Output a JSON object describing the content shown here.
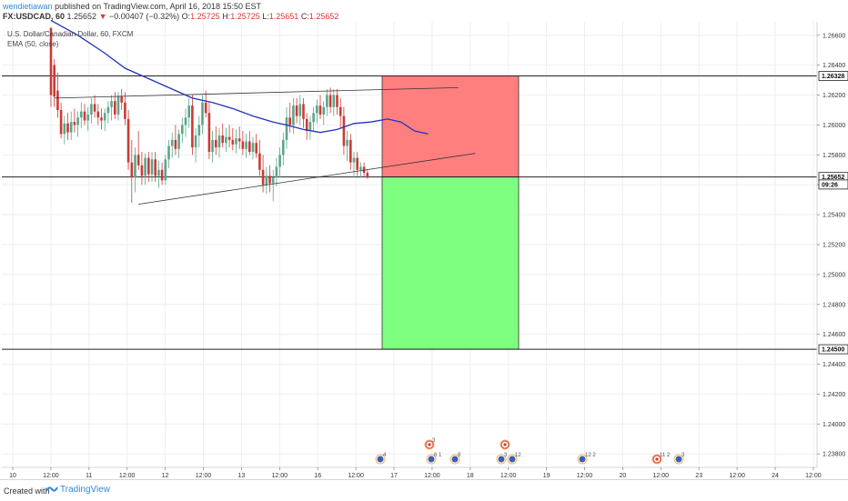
{
  "header": {
    "author": "wendietiawan",
    "published_text": "published on TradingView.com, April 16, 2018 15:50 EST",
    "symbol": "FX:USDCAD, 60",
    "last": "1.25652",
    "change_arrow": "▼",
    "change": "−0.00407 (−0.32%)",
    "o_label": "O:",
    "o": "1.25725",
    "h_label": "H:",
    "h": "1.25725",
    "l_label": "L:",
    "l": "1.25651",
    "c_label": "C:",
    "c": "1.25652"
  },
  "legend": {
    "instrument": "U.S. Dollar/Canadian Dollar, 60, FXCM",
    "indicator": "EMA (50, close)"
  },
  "footer": {
    "created_with": "Created with",
    "brand": "TradingView"
  },
  "colors": {
    "up": "#5aa68c",
    "down": "#cc3a35",
    "ema": "#2233bb",
    "stop_zone": "#ff7f7f",
    "target_zone": "#7fff7f",
    "canada_flag": "#d9382f",
    "us_flag": "#3a5fae"
  },
  "chart_data": {
    "type": "candlestick",
    "title": "",
    "xlabel": "",
    "ylabel": "",
    "ylim": [
      1.2371,
      1.2669
    ],
    "y_ticks": [
      "1.26600",
      "1.26400",
      "1.26200",
      "1.26000",
      "1.25800",
      "1.25600",
      "1.25400",
      "1.25200",
      "1.25000",
      "1.24800",
      "1.24600",
      "1.24400",
      "1.24200",
      "1.24000",
      "1.23800"
    ],
    "x_ticks": [
      "10",
      "12:00",
      "11",
      "12:00",
      "12",
      "12:00",
      "13",
      "12:00",
      "16",
      "12:00",
      "17",
      "12:00",
      "18",
      "12:00",
      "19",
      "12:00",
      "20",
      "12:00",
      "23",
      "12:00",
      "24",
      "12:00"
    ],
    "price_labels": [
      {
        "text": "1.26328",
        "value": 1.26328
      },
      {
        "text": "1.25652",
        "value": 1.25652
      },
      {
        "text": "09:26",
        "value": 1.25602
      },
      {
        "text": "1.24500",
        "value": 1.245
      }
    ],
    "horizontal_lines": [
      1.26328,
      1.25652,
      1.245
    ],
    "position": {
      "entry": 1.25652,
      "stop": 1.26328,
      "target": 1.245
    },
    "trendlines": [
      {
        "from": {
          "bar": 1,
          "price": 1.2618
        },
        "to": {
          "bar": 121,
          "price": 1.2625
        }
      },
      {
        "from": {
          "bar": 26,
          "price": 1.2547
        },
        "to": {
          "bar": 126,
          "price": 1.2581
        }
      }
    ],
    "candles": [
      [
        1.2665,
        1.2665,
        1.2612,
        1.262
      ],
      [
        1.264,
        1.2644,
        1.2612,
        1.2619
      ],
      [
        1.2623,
        1.2635,
        1.2605,
        1.261
      ],
      [
        1.261,
        1.2615,
        1.2591,
        1.2594
      ],
      [
        1.2594,
        1.2606,
        1.2587,
        1.2601
      ],
      [
        1.2601,
        1.2608,
        1.259,
        1.2595
      ],
      [
        1.2595,
        1.2609,
        1.259,
        1.2602
      ],
      [
        1.2602,
        1.2611,
        1.2595,
        1.26
      ],
      [
        1.26,
        1.2609,
        1.2592,
        1.2605
      ],
      [
        1.2605,
        1.2615,
        1.2598,
        1.2609
      ],
      [
        1.2609,
        1.2614,
        1.26,
        1.2603
      ],
      [
        1.2603,
        1.2612,
        1.2596,
        1.2607
      ],
      [
        1.2607,
        1.2618,
        1.2601,
        1.2614
      ],
      [
        1.2614,
        1.262,
        1.2605,
        1.2609
      ],
      [
        1.2609,
        1.2614,
        1.26,
        1.2605
      ],
      [
        1.2605,
        1.2611,
        1.2597,
        1.2603
      ],
      [
        1.2603,
        1.2611,
        1.2596,
        1.2608
      ],
      [
        1.2608,
        1.2616,
        1.2601,
        1.2612
      ],
      [
        1.2612,
        1.262,
        1.2603,
        1.2616
      ],
      [
        1.2616,
        1.2622,
        1.2604,
        1.2607
      ],
      [
        1.2607,
        1.2622,
        1.2603,
        1.2619
      ],
      [
        1.2619,
        1.2624,
        1.261,
        1.2615
      ],
      [
        1.2615,
        1.2622,
        1.26,
        1.2604
      ],
      [
        1.2604,
        1.261,
        1.257,
        1.2575
      ],
      [
        1.2575,
        1.259,
        1.2548,
        1.2565
      ],
      [
        1.2565,
        1.2585,
        1.2555,
        1.258
      ],
      [
        1.258,
        1.2596,
        1.257,
        1.2573
      ],
      [
        1.2573,
        1.2582,
        1.256,
        1.2566
      ],
      [
        1.2566,
        1.2581,
        1.256,
        1.2578
      ],
      [
        1.2578,
        1.2582,
        1.2562,
        1.2567
      ],
      [
        1.2567,
        1.2582,
        1.2562,
        1.2577
      ],
      [
        1.2577,
        1.2582,
        1.2562,
        1.2566
      ],
      [
        1.2566,
        1.2576,
        1.2558,
        1.257
      ],
      [
        1.257,
        1.2575,
        1.256,
        1.2563
      ],
      [
        1.2563,
        1.258,
        1.256,
        1.2577
      ],
      [
        1.2577,
        1.259,
        1.2571,
        1.2586
      ],
      [
        1.2586,
        1.2595,
        1.2578,
        1.259
      ],
      [
        1.259,
        1.26,
        1.258,
        1.2584
      ],
      [
        1.2584,
        1.2597,
        1.2578,
        1.2594
      ],
      [
        1.2594,
        1.2605,
        1.2588,
        1.26
      ],
      [
        1.26,
        1.2611,
        1.2592,
        1.2605
      ],
      [
        1.2605,
        1.2618,
        1.2598,
        1.2613
      ],
      [
        1.2613,
        1.262,
        1.258,
        1.2585
      ],
      [
        1.2585,
        1.2598,
        1.2575,
        1.2593
      ],
      [
        1.2593,
        1.2606,
        1.2585,
        1.26
      ],
      [
        1.26,
        1.262,
        1.2594,
        1.2615
      ],
      [
        1.2615,
        1.2623,
        1.2605,
        1.2608
      ],
      [
        1.2608,
        1.2615,
        1.2577,
        1.2582
      ],
      [
        1.2582,
        1.2596,
        1.2575,
        1.259
      ],
      [
        1.259,
        1.2599,
        1.258,
        1.2585
      ],
      [
        1.2585,
        1.2598,
        1.2578,
        1.2593
      ],
      [
        1.2593,
        1.2601,
        1.2585,
        1.2588
      ],
      [
        1.2588,
        1.2598,
        1.2582,
        1.2592
      ],
      [
        1.2592,
        1.26,
        1.2585,
        1.259
      ],
      [
        1.259,
        1.2598,
        1.2583,
        1.2587
      ],
      [
        1.2587,
        1.2597,
        1.2581,
        1.2591
      ],
      [
        1.2591,
        1.2599,
        1.2584,
        1.2589
      ],
      [
        1.2589,
        1.2596,
        1.258,
        1.2584
      ],
      [
        1.2584,
        1.2594,
        1.2578,
        1.2589
      ],
      [
        1.2589,
        1.2596,
        1.258,
        1.2582
      ],
      [
        1.2582,
        1.2592,
        1.2577,
        1.2588
      ],
      [
        1.2588,
        1.2594,
        1.2578,
        1.2581
      ],
      [
        1.2581,
        1.259,
        1.2566,
        1.257
      ],
      [
        1.257,
        1.258,
        1.2555,
        1.256
      ],
      [
        1.256,
        1.2572,
        1.2554,
        1.2566
      ],
      [
        1.2566,
        1.2573,
        1.2555,
        1.2561
      ],
      [
        1.2561,
        1.257,
        1.2549,
        1.2565
      ],
      [
        1.2565,
        1.2578,
        1.2559,
        1.2572
      ],
      [
        1.2572,
        1.2585,
        1.2565,
        1.258
      ],
      [
        1.258,
        1.2595,
        1.2573,
        1.259
      ],
      [
        1.259,
        1.2612,
        1.2584,
        1.2605
      ],
      [
        1.2605,
        1.2615,
        1.2595,
        1.26
      ],
      [
        1.26,
        1.2618,
        1.2594,
        1.2613
      ],
      [
        1.2613,
        1.2618,
        1.2601,
        1.2606
      ],
      [
        1.2606,
        1.262,
        1.26,
        1.2614
      ],
      [
        1.2614,
        1.2618,
        1.2598,
        1.2604
      ],
      [
        1.2604,
        1.2608,
        1.259,
        1.2596
      ],
      [
        1.2596,
        1.2606,
        1.259,
        1.2602
      ],
      [
        1.2602,
        1.2612,
        1.2596,
        1.2608
      ],
      [
        1.2608,
        1.2617,
        1.2601,
        1.2613
      ],
      [
        1.2613,
        1.262,
        1.2604,
        1.2607
      ],
      [
        1.2607,
        1.2616,
        1.26,
        1.2612
      ],
      [
        1.2612,
        1.2624,
        1.2606,
        1.262
      ],
      [
        1.262,
        1.2625,
        1.2608,
        1.2612
      ],
      [
        1.2612,
        1.2624,
        1.2606,
        1.262
      ],
      [
        1.262,
        1.2624,
        1.2607,
        1.2612
      ],
      [
        1.2612,
        1.2618,
        1.2598,
        1.2606
      ],
      [
        1.2606,
        1.2612,
        1.258,
        1.2586
      ],
      [
        1.2586,
        1.2596,
        1.2576,
        1.259
      ],
      [
        1.259,
        1.2594,
        1.257,
        1.2575
      ],
      [
        1.2575,
        1.2582,
        1.2565,
        1.2578
      ],
      [
        1.2578,
        1.2582,
        1.2566,
        1.257
      ],
      [
        1.257,
        1.2575,
        1.2565,
        1.2572
      ],
      [
        1.2572,
        1.2575,
        1.2565,
        1.2568
      ],
      [
        1.2568,
        1.257,
        1.2564,
        1.25652
      ]
    ],
    "ema_50": [
      [
        0,
        1.267
      ],
      [
        8,
        1.266
      ],
      [
        16,
        1.2648
      ],
      [
        22,
        1.2638
      ],
      [
        30,
        1.263
      ],
      [
        37,
        1.2623
      ],
      [
        42,
        1.2618
      ],
      [
        48,
        1.2615
      ],
      [
        54,
        1.2611
      ],
      [
        60,
        1.2606
      ],
      [
        66,
        1.2602
      ],
      [
        70,
        1.26
      ],
      [
        75,
        1.2597
      ],
      [
        80,
        1.2595
      ],
      [
        85,
        1.2597
      ],
      [
        90,
        1.2601
      ],
      [
        95,
        1.2602
      ],
      [
        100,
        1.2604
      ],
      [
        104,
        1.2602
      ],
      [
        108,
        1.2596
      ],
      [
        112,
        1.2594
      ]
    ],
    "event_markers": [
      {
        "x_tick": "17",
        "flag": "us",
        "count": "4",
        "row": "bottom"
      },
      {
        "x_tick": "12:00",
        "flag": "ca",
        "count": "3",
        "row": "top"
      },
      {
        "x_tick": "12:00",
        "flag": "us",
        "count": "6 1",
        "row": "bottom"
      },
      {
        "x_tick": "18",
        "flag": "us",
        "count": "8",
        "row": "bottom"
      },
      {
        "x_tick": "12:00",
        "flag": "ca",
        "count": "",
        "row": "top"
      },
      {
        "x_tick": "12:00",
        "flag": "us",
        "count": "3",
        "row": "bottom"
      },
      {
        "x_tick": "12:00",
        "flag": "us",
        "count": "12",
        "row": "bottom"
      },
      {
        "x_tick": "12:00",
        "flag": "us",
        "count": "12 2",
        "row": "bottom"
      },
      {
        "x_tick": "12:00",
        "flag": "ca",
        "count": "11 2",
        "row": "bottom"
      },
      {
        "x_tick": "12:00",
        "flag": "us",
        "count": "3",
        "row": "bottom"
      }
    ]
  }
}
